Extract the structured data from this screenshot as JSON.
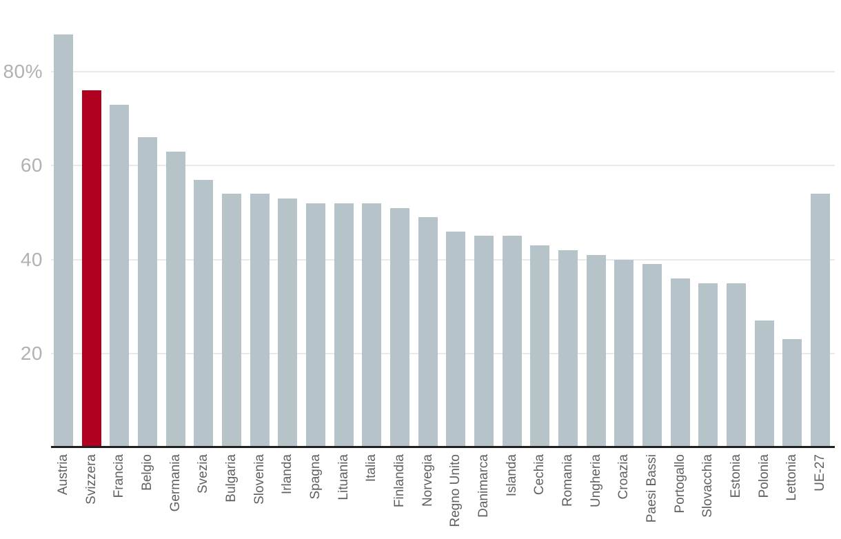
{
  "chart_data": {
    "type": "bar",
    "title": "",
    "xlabel": "",
    "ylabel": "",
    "categories": [
      "Austria",
      "Svizzera",
      "Francia",
      "Belgio",
      "Germania",
      "Svezia",
      "Bulgaria",
      "Slovenia",
      "Irlanda",
      "Spagna",
      "Lituania",
      "Italia",
      "Finlandia",
      "Norvegia",
      "Regno Unito",
      "Danimarca",
      "Islanda",
      "Cechia",
      "Romania",
      "Ungheria",
      "Croazia",
      "Paesi Bassi",
      "Portogallo",
      "Slovacchia",
      "Estonia",
      "Polonia",
      "Lettonia",
      "UE-27"
    ],
    "values": [
      88,
      76,
      73,
      66,
      63,
      57,
      54,
      54,
      53,
      52,
      52,
      52,
      51,
      49,
      46,
      45,
      45,
      43,
      42,
      41,
      40,
      39,
      36,
      35,
      35,
      27,
      23,
      54
    ],
    "unit": "%",
    "highlight_category": "Svizzera",
    "y_ticks": [
      {
        "value": 80,
        "label": "80%"
      },
      {
        "value": 60,
        "label": "60"
      },
      {
        "value": 40,
        "label": "40"
      },
      {
        "value": 20,
        "label": "20"
      }
    ],
    "ylim": [
      0,
      95.3
    ],
    "grid": "horizontal",
    "legend": "none",
    "x_label_rotation": -90
  },
  "colors": {
    "bar_default": "#b6c3c8",
    "bar_highlight": "#b00220",
    "gridline": "#e9e9e9",
    "axis_line": "#1f1f1f",
    "ytick_label": "#b1b1b1",
    "xtick_label": "#606060",
    "background": "#ffffff"
  }
}
